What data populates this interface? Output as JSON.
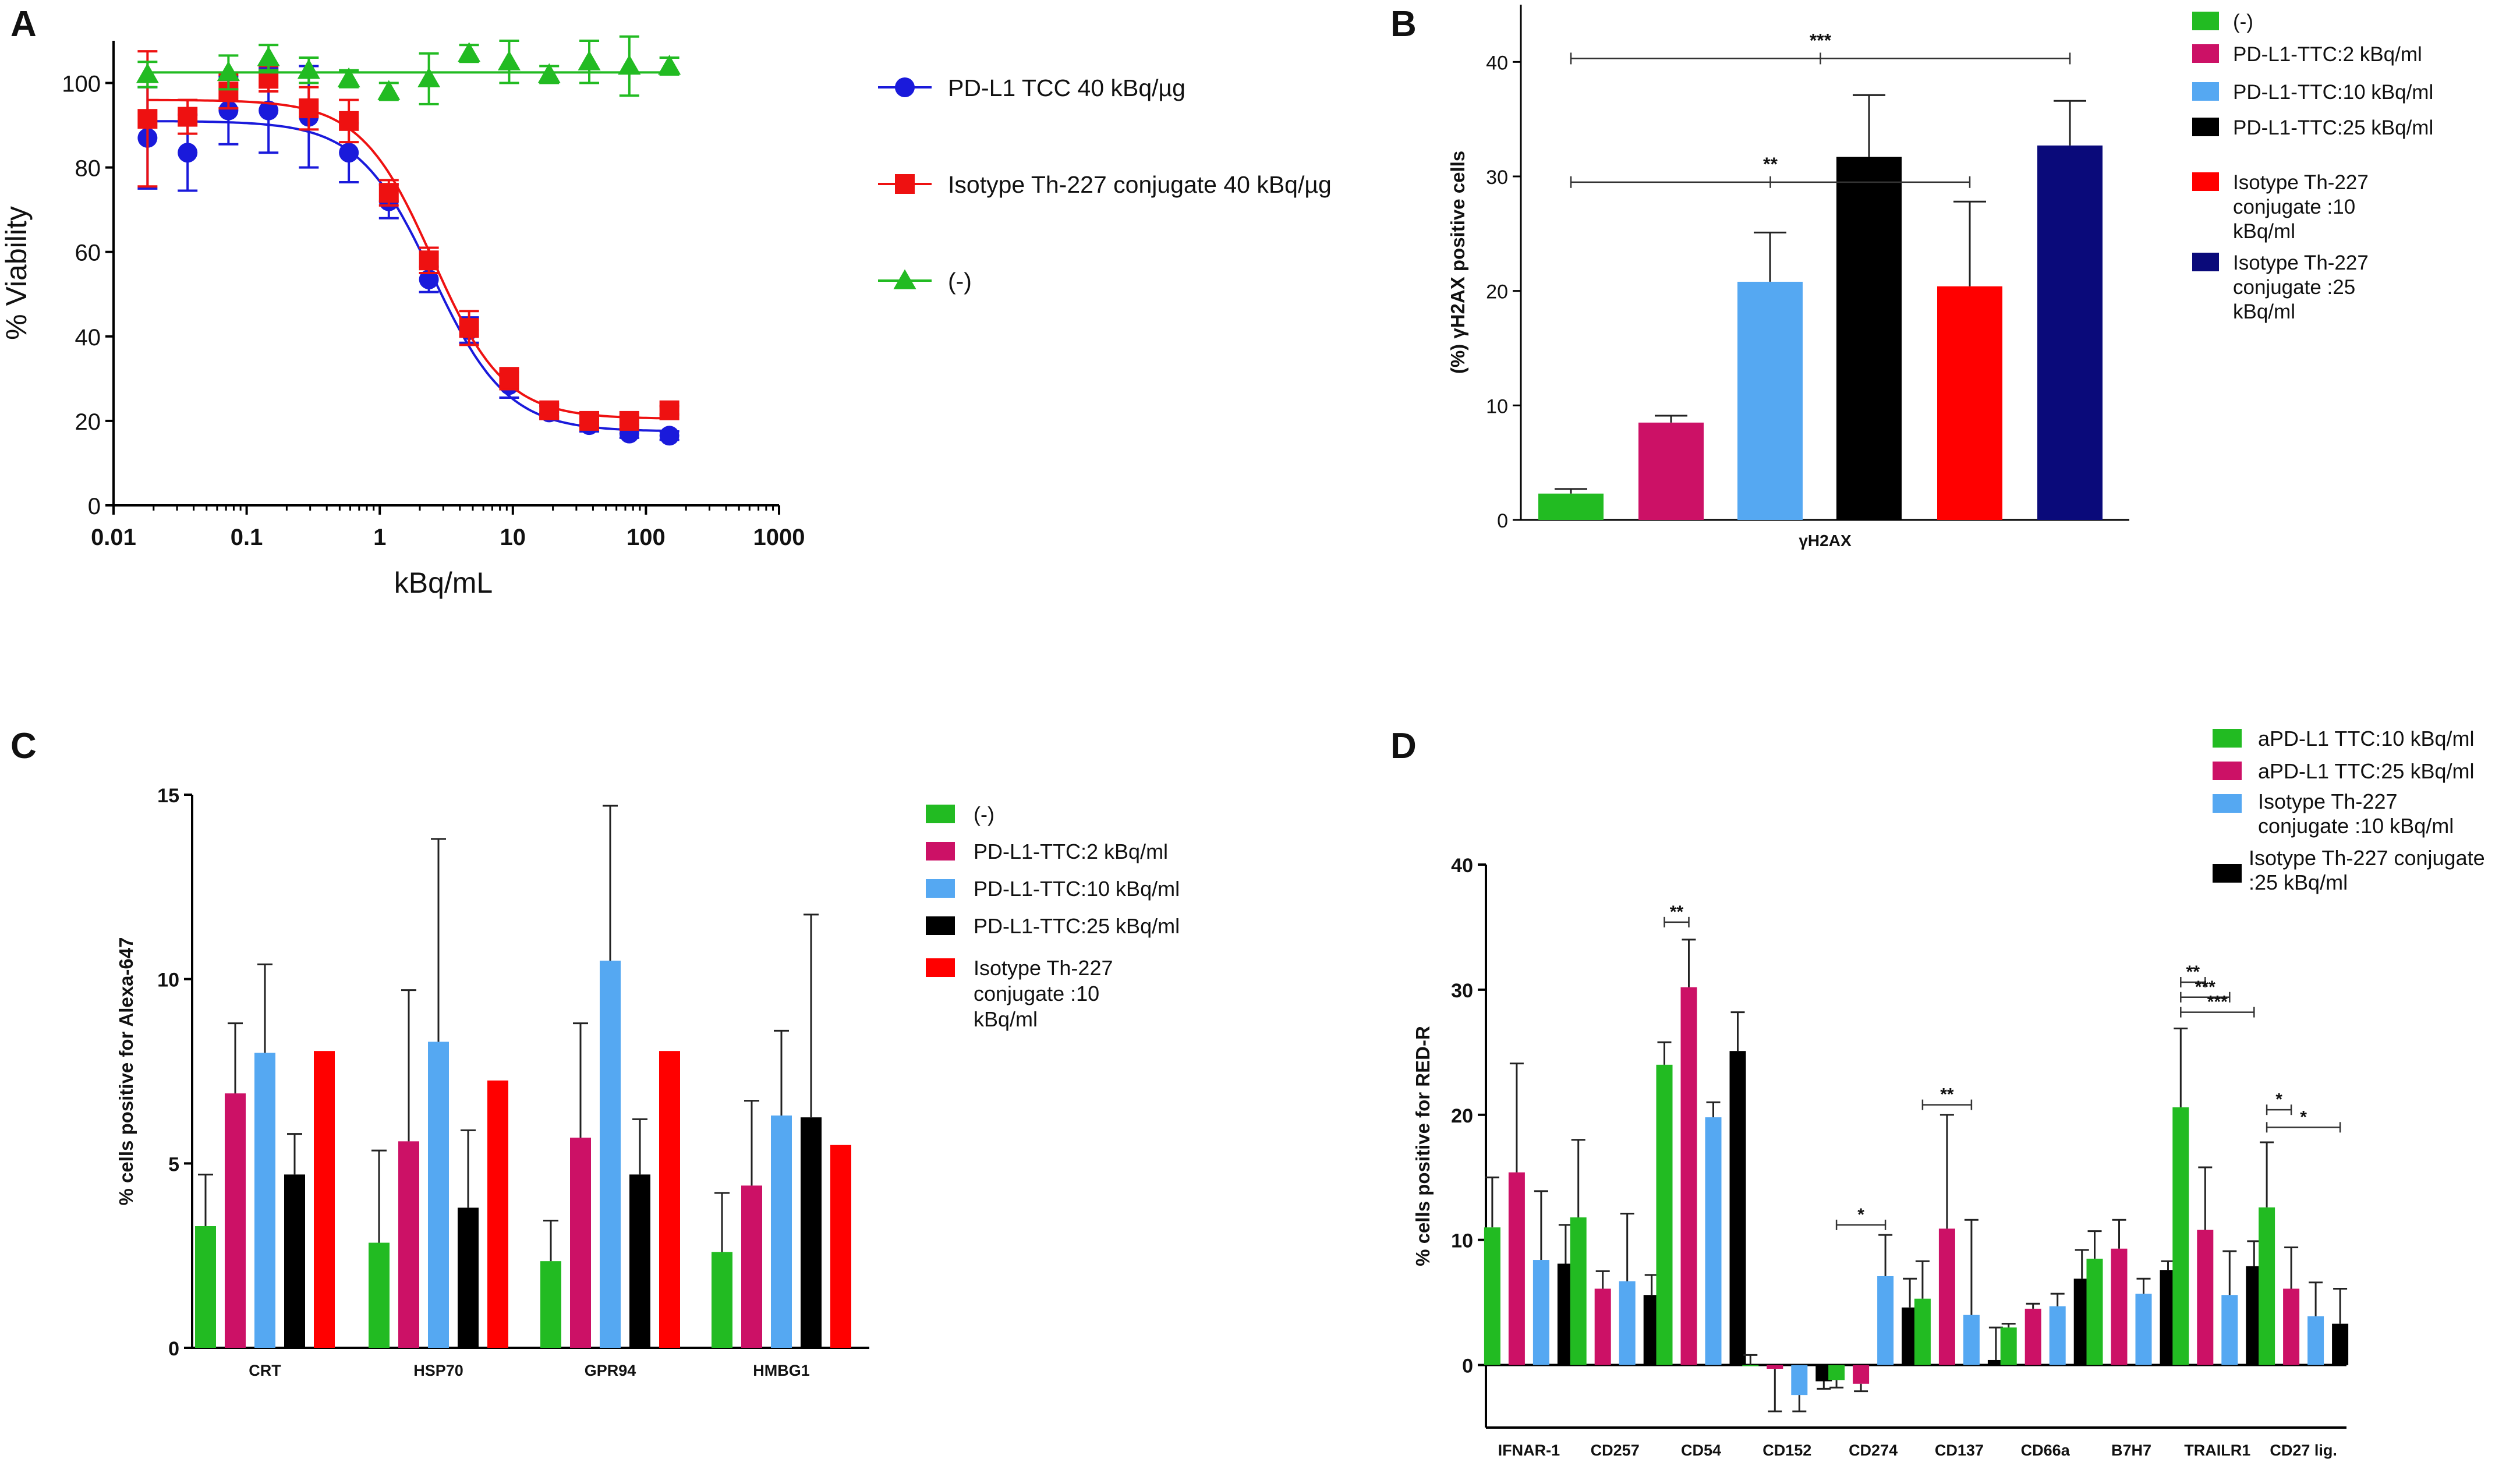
{
  "colors": {
    "green": "#22bb22",
    "magenta": "#cc1166",
    "lightblue": "#55a8f2",
    "black": "#000000",
    "red": "#ff0000",
    "navy": "#0a0a7a",
    "blue_line": "#1a1adb",
    "red_line": "#ee1111",
    "green_line": "#22bb22"
  },
  "chart_data": [
    {
      "panel_label": "A",
      "type": "scatter",
      "title": "",
      "xlabel": "kBq/mL",
      "ylabel": "% Viability",
      "xscale": "log",
      "xlim": [
        0.01,
        1000
      ],
      "ylim": [
        0,
        110
      ],
      "x_ticks": [
        0.01,
        0.1,
        1,
        10,
        100,
        1000
      ],
      "x_tick_labels": [
        "0.01",
        "0.1",
        "1",
        "10",
        "100",
        "1000"
      ],
      "y_ticks": [
        0,
        20,
        40,
        60,
        80,
        100
      ],
      "y_tick_labels": [
        "0",
        "20",
        "40",
        "60",
        "80",
        "100"
      ],
      "legend_position": "right",
      "series": [
        {
          "name": "PD-L1 TCC 40 kBq/µg",
          "marker": "circle",
          "color": "#1a1adb",
          "x": [
            0.018,
            0.036,
            0.073,
            0.146,
            0.293,
            0.586,
            1.17,
            2.34,
            4.69,
            9.38,
            18.75,
            37.5,
            75,
            150
          ],
          "y": [
            87,
            83.5,
            93.5,
            93.5,
            92,
            83.5,
            72,
            53.5,
            41.5,
            28.5,
            22,
            19,
            17,
            16.5
          ],
          "err": [
            12,
            9,
            8,
            10,
            12,
            7,
            4,
            3,
            3,
            3,
            1.5,
            1.5,
            1,
            1
          ],
          "fit": {
            "top": 91,
            "bottom": 17.5,
            "ec50": 2.5,
            "hill": 1.55
          }
        },
        {
          "name": "Isotype Th-227 conjugate  40 kBq/µg",
          "marker": "square",
          "color": "#ee1111",
          "x": [
            0.018,
            0.036,
            0.073,
            0.146,
            0.293,
            0.586,
            1.17,
            2.34,
            4.69,
            9.38,
            18.75,
            37.5,
            75,
            150
          ],
          "y": [
            91.5,
            92,
            98,
            101,
            94,
            91,
            74,
            58,
            42,
            30,
            22.5,
            20,
            20,
            22.5
          ],
          "err": [
            16,
            4,
            4,
            3,
            5,
            5,
            3,
            3,
            4,
            2.5,
            1.5,
            1.5,
            1,
            1
          ],
          "fit": {
            "top": 96,
            "bottom": 20.5,
            "ec50": 2.5,
            "hill": 1.6
          }
        },
        {
          "name": "(-)",
          "marker": "triangle",
          "color": "#22bb22",
          "x": [
            0.018,
            0.073,
            0.146,
            0.293,
            0.586,
            1.17,
            2.34,
            4.69,
            9.38,
            18.75,
            37.5,
            75,
            150
          ],
          "y": [
            102,
            102.5,
            106,
            103,
            101,
            98,
            101,
            107,
            105,
            102,
            105,
            104,
            104
          ],
          "err": [
            3,
            4,
            3,
            3,
            2,
            2,
            6,
            2,
            5,
            2,
            5,
            7,
            2
          ],
          "fit": {
            "flat": true,
            "y": 102.5
          }
        }
      ]
    },
    {
      "panel_label": "B",
      "type": "bar",
      "title": "",
      "xlabel": "",
      "ylabel": "(%) γH2AX positive cells",
      "ylim": [
        0,
        45
      ],
      "y_ticks": [
        0,
        10,
        20,
        30,
        40
      ],
      "y_tick_labels": [
        "0",
        "10",
        "20",
        "30",
        "40"
      ],
      "categories": [
        "γH2AX"
      ],
      "legend_position": "right",
      "series": [
        {
          "name": "(-)",
          "values": [
            2.3
          ],
          "err": [
            0.4
          ],
          "color": "#22bb22"
        },
        {
          "name": "PD-L1-TTC:2 kBq/ml",
          "values": [
            8.5
          ],
          "err": [
            0.6
          ],
          "color": "#cc1166"
        },
        {
          "name": "PD-L1-TTC:10 kBq/ml",
          "values": [
            20.8
          ],
          "err": [
            4.3
          ],
          "color": "#55a8f2"
        },
        {
          "name": "PD-L1-TTC:25 kBq/ml",
          "values": [
            31.7
          ],
          "err": [
            5.4
          ],
          "color": "#000000"
        },
        {
          "name": "Isotype Th-227 conjugate :10 kBq/ml",
          "values": [
            20.4
          ],
          "err": [
            7.4
          ],
          "color": "#ff0000"
        },
        {
          "name": "Isotype Th-227 conjugate :25 kBq/ml",
          "values": [
            32.7
          ],
          "err": [
            3.9
          ],
          "color": "#0a0a7a"
        }
      ],
      "annotations": [
        {
          "text": "***",
          "from_series": 0,
          "to_series": 5,
          "y": 40.3
        },
        {
          "text": "**",
          "from_series": 0,
          "to_series": 4,
          "y": 29.5
        }
      ]
    },
    {
      "panel_label": "C",
      "type": "bar",
      "title": "",
      "xlabel": "",
      "ylabel": "% cells positive for Alexa-647",
      "ylim": [
        0,
        15
      ],
      "y_ticks": [
        0,
        5,
        10,
        15
      ],
      "y_tick_labels": [
        "0",
        "5",
        "10",
        "15"
      ],
      "categories": [
        "CRT",
        "HSP70",
        "GPR94",
        "HMBG1"
      ],
      "legend_position": "right",
      "series": [
        {
          "name": "(-)",
          "values": [
            3.3,
            2.85,
            2.35,
            2.6
          ],
          "err": [
            1.4,
            2.5,
            1.1,
            1.6
          ],
          "color": "#22bb22"
        },
        {
          "name": "PD-L1-TTC:2 kBq/ml",
          "values": [
            6.9,
            5.6,
            5.7,
            4.4
          ],
          "err": [
            1.9,
            4.1,
            3.1,
            2.3
          ],
          "color": "#cc1166"
        },
        {
          "name": "PD-L1-TTC:10 kBq/ml",
          "values": [
            8.0,
            8.3,
            10.5,
            6.3
          ],
          "err": [
            2.4,
            5.5,
            4.2,
            2.3
          ],
          "color": "#55a8f2"
        },
        {
          "name": "PD-L1-TTC:25 kBq/ml",
          "values": [
            4.7,
            3.8,
            4.7,
            6.25
          ],
          "err": [
            1.1,
            2.1,
            1.5,
            5.5
          ],
          "color": "#000000"
        },
        {
          "name": "Isotype Th-227 conjugate :10 kBq/ml",
          "values": [
            8.05,
            7.25,
            8.05,
            5.5
          ],
          "err": [
            0,
            0,
            0,
            0
          ],
          "color": "#ff0000"
        }
      ]
    },
    {
      "panel_label": "D",
      "type": "bar",
      "title": "",
      "xlabel": "",
      "ylabel": "% cells positive for RED-R",
      "ylim": [
        -5,
        40
      ],
      "y_ticks": [
        0,
        10,
        20,
        30,
        40
      ],
      "y_tick_labels": [
        "0",
        "10",
        "20",
        "30",
        "40"
      ],
      "categories": [
        "IFNAR-1",
        "CD257",
        "CD54",
        "CD152",
        "CD274",
        "CD137",
        "CD66a",
        "B7H7",
        "TRAILR1",
        "CD27 lig."
      ],
      "legend_position": "top-right",
      "series": [
        {
          "name": "aPD-L1 TTC:10 kBq/ml",
          "values": [
            11.0,
            11.8,
            24.0,
            0.0,
            -1.2,
            5.3,
            3.0,
            8.5,
            20.6,
            12.6
          ],
          "err": [
            4.0,
            6.2,
            1.8,
            0.8,
            0.6,
            3.0,
            0.3,
            2.2,
            6.3,
            5.2
          ],
          "color": "#22bb22"
        },
        {
          "name": "aPD-L1 TTC:25 kBq/ml",
          "values": [
            15.4,
            6.1,
            30.2,
            -0.3,
            -1.5,
            10.9,
            4.5,
            9.3,
            10.8,
            6.1
          ],
          "err": [
            8.7,
            1.4,
            3.8,
            3.4,
            0.6,
            9.1,
            0.4,
            2.3,
            5.0,
            3.3
          ],
          "color": "#cc1166"
        },
        {
          "name": "Isotype Th-227 conjugate :10 kBq/ml",
          "values": [
            8.4,
            6.7,
            19.8,
            -2.4,
            7.1,
            4.0,
            4.7,
            5.7,
            5.6,
            3.9
          ],
          "err": [
            5.5,
            5.4,
            1.2,
            1.3,
            3.3,
            7.6,
            1.0,
            1.2,
            3.5,
            2.7
          ],
          "color": "#55a8f2"
        },
        {
          "name": "Isotype Th-227 conjugate :25 kBq/ml",
          "values": [
            8.1,
            5.6,
            25.1,
            -1.3,
            4.6,
            0.4,
            6.9,
            7.6,
            7.9,
            3.3
          ],
          "err": [
            3.1,
            1.6,
            3.1,
            0.6,
            2.3,
            2.6,
            2.3,
            0.7,
            2.0,
            2.8
          ],
          "color": "#000000"
        }
      ],
      "annotations": [
        {
          "text": "**",
          "category": 2,
          "from_series": 0,
          "to_series": 1,
          "y": 35.4
        },
        {
          "text": "*",
          "category": 4,
          "from_series": 0,
          "to_series": 2,
          "y": 11.2
        },
        {
          "text": "**",
          "category": 5,
          "from_series": 0,
          "to_series": 2,
          "y": 20.8
        },
        {
          "text": "**",
          "category": 8,
          "from_series": 0,
          "to_series": 1,
          "y": 30.6
        },
        {
          "text": "***",
          "category": 8,
          "from_series": 0,
          "to_series": 2,
          "y": 29.4
        },
        {
          "text": "***",
          "category": 8,
          "from_series": 0,
          "to_series": 3,
          "y": 28.2
        },
        {
          "text": "*",
          "category": 9,
          "from_series": 0,
          "to_series": 1,
          "y": 20.4
        },
        {
          "text": "*",
          "category": 9,
          "from_series": 0,
          "to_series": 3,
          "y": 19.0
        }
      ]
    }
  ]
}
